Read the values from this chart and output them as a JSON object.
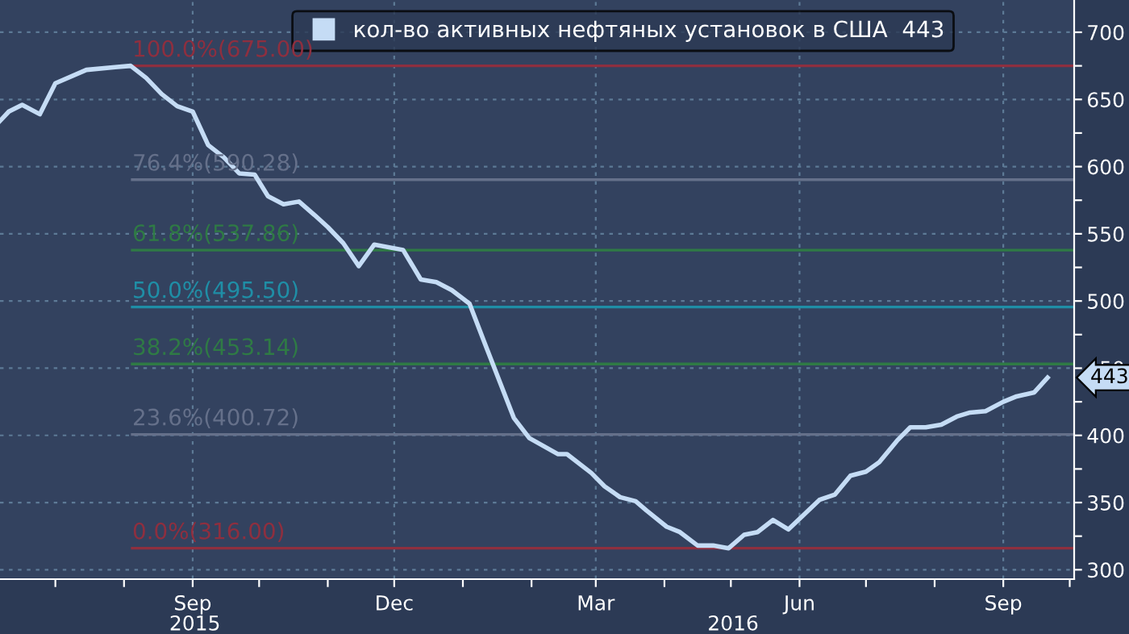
{
  "chart_data": {
    "type": "line",
    "x": [
      "2015-06-06",
      "2015-06-10",
      "2015-06-16",
      "2015-06-24",
      "2015-07-01",
      "2015-07-15",
      "2015-07-28",
      "2015-08-04",
      "2015-08-11",
      "2015-08-18",
      "2015-08-25",
      "2015-09-01",
      "2015-09-08",
      "2015-09-15",
      "2015-09-22",
      "2015-09-29",
      "2015-10-05",
      "2015-10-12",
      "2015-10-19",
      "2015-10-26",
      "2015-11-01",
      "2015-11-08",
      "2015-11-15",
      "2015-11-22",
      "2015-12-05",
      "2015-12-13",
      "2015-12-20",
      "2015-12-27",
      "2016-01-04",
      "2016-01-11",
      "2016-01-24",
      "2016-01-31",
      "2016-02-13",
      "2016-02-17",
      "2016-02-28",
      "2016-03-05",
      "2016-03-12",
      "2016-03-19",
      "2016-03-24",
      "2016-04-02",
      "2016-04-08",
      "2016-04-16",
      "2016-04-23",
      "2016-04-30",
      "2016-05-07",
      "2016-05-13",
      "2016-05-20",
      "2016-05-27",
      "2016-06-03",
      "2016-06-10",
      "2016-06-17",
      "2016-06-24",
      "2016-07-01",
      "2016-07-07",
      "2016-07-15",
      "2016-07-21",
      "2016-07-28",
      "2016-08-04",
      "2016-08-11",
      "2016-08-17",
      "2016-08-24",
      "2016-09-01",
      "2016-09-07",
      "2016-09-15",
      "2016-09-21"
    ],
    "series": [
      {
        "name": "кол-во активных нефтяных установок в США  443",
        "color": "#c5dcf5",
        "values": [
          634,
          641,
          646,
          639,
          662,
          672,
          674,
          675,
          666,
          654,
          645,
          641,
          616,
          607,
          595,
          594,
          578,
          572,
          574,
          564,
          555,
          543,
          526,
          542,
          538,
          516,
          514,
          508,
          498,
          468,
          413,
          398,
          386,
          386,
          372,
          362,
          354,
          351,
          344,
          332,
          328,
          318,
          318,
          316,
          326,
          328,
          337,
          330,
          341,
          352,
          356,
          370,
          373,
          380,
          396,
          406,
          406,
          408,
          414,
          417,
          418,
          425,
          429,
          432,
          443
        ]
      }
    ],
    "xlim": [
      "2015-06-06",
      "2016-10-03"
    ],
    "xticks": [
      {
        "value": "2015-07-01",
        "label": null
      },
      {
        "value": "2015-08-01",
        "label": null
      },
      {
        "value": "2015-09-01",
        "label": "Sep"
      },
      {
        "value": "2015-10-01",
        "label": null
      },
      {
        "value": "2015-11-01",
        "label": null
      },
      {
        "value": "2015-12-01",
        "label": "Dec"
      },
      {
        "value": "2016-01-01",
        "label": null
      },
      {
        "value": "2016-02-01",
        "label": null
      },
      {
        "value": "2016-03-01",
        "label": "Mar"
      },
      {
        "value": "2016-04-01",
        "label": null
      },
      {
        "value": "2016-05-01",
        "label": null
      },
      {
        "value": "2016-06-01",
        "label": "Jun"
      },
      {
        "value": "2016-07-01",
        "label": null
      },
      {
        "value": "2016-08-01",
        "label": null
      },
      {
        "value": "2016-09-01",
        "label": "Sep"
      },
      {
        "value": "2016-10-01",
        "label": null
      }
    ],
    "x2lim": [
      "2015-06-06",
      "2016-10-03"
    ],
    "x2ticks": [
      {
        "value": "2015-09-02",
        "label": "2015"
      },
      {
        "value": "2016-05-02",
        "label": "2016"
      }
    ],
    "ylim": [
      293,
      724
    ],
    "yticks": [
      300,
      {
        "value": 325,
        "label": null
      },
      350,
      {
        "value": 375,
        "label": null
      },
      400,
      {
        "value": 425,
        "label": null
      },
      450,
      {
        "value": 475,
        "label": null
      },
      500,
      {
        "value": 525,
        "label": null
      },
      550,
      {
        "value": 575,
        "label": null
      },
      600,
      {
        "value": 625,
        "label": null
      },
      650,
      {
        "value": 675,
        "label": null
      },
      700
    ],
    "ref_lines": [
      {
        "axis": "y",
        "value": 675,
        "label": "100.0%(675.00)",
        "color": "#8e2f3f"
      },
      {
        "axis": "y",
        "value": 590.28,
        "label": "76.4%(590.28)",
        "color": "#65708a"
      },
      {
        "axis": "y",
        "value": 537.86,
        "label": "61.8%(537.86)",
        "color": "#2f7a45"
      },
      {
        "axis": "y",
        "value": 495.5,
        "label": "50.0%(495.50)",
        "color": "#1f8ea6"
      },
      {
        "axis": "y",
        "value": 453.14,
        "label": "38.2%(453.14)",
        "color": "#2f7a45"
      },
      {
        "axis": "y",
        "value": 400.72,
        "label": "23.6%(400.72)",
        "color": "#65708a"
      },
      {
        "axis": "y",
        "value": 316,
        "label": "0.0%(316.00)",
        "color": "#8e2f3f"
      }
    ],
    "annotations": [
      {
        "text": "443",
        "x": "2016-09-21",
        "y": 443
      }
    ],
    "grid": true,
    "legend": "top",
    "line_style": "solid",
    "marker": "none"
  }
}
